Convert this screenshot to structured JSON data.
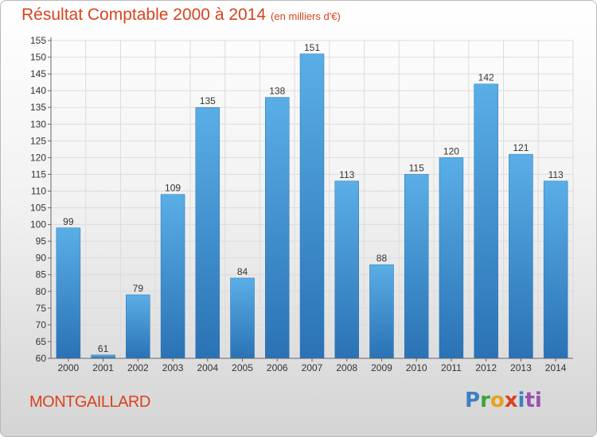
{
  "header": {
    "title": "Résultat Comptable 2000 à 2014",
    "unit": "(en milliers d'€)"
  },
  "footer": {
    "place": "MONTGAILLARD",
    "logo": [
      "P",
      "r",
      "o",
      "x",
      "i",
      "ti"
    ]
  },
  "chart_data": {
    "type": "bar",
    "title": "Résultat Comptable 2000 à 2014",
    "subtitle": "(en milliers d'€)",
    "xlabel": "",
    "ylabel": "",
    "categories": [
      "2000",
      "2001",
      "2002",
      "2003",
      "2004",
      "2005",
      "2006",
      "2007",
      "2008",
      "2009",
      "2010",
      "2011",
      "2012",
      "2013",
      "2014"
    ],
    "values": [
      99,
      61,
      79,
      109,
      135,
      84,
      138,
      151,
      113,
      88,
      115,
      120,
      142,
      121,
      113
    ],
    "ylim": [
      60,
      155
    ],
    "yticks": [
      60,
      65,
      70,
      75,
      80,
      85,
      90,
      95,
      100,
      105,
      110,
      115,
      120,
      125,
      130,
      135,
      140,
      145,
      150,
      155
    ],
    "grid": true,
    "colors": {
      "bar": "#3f97d8",
      "bar_dark": "#2a72b5",
      "grid": "#dcdcdc",
      "axis": "#666666"
    }
  }
}
